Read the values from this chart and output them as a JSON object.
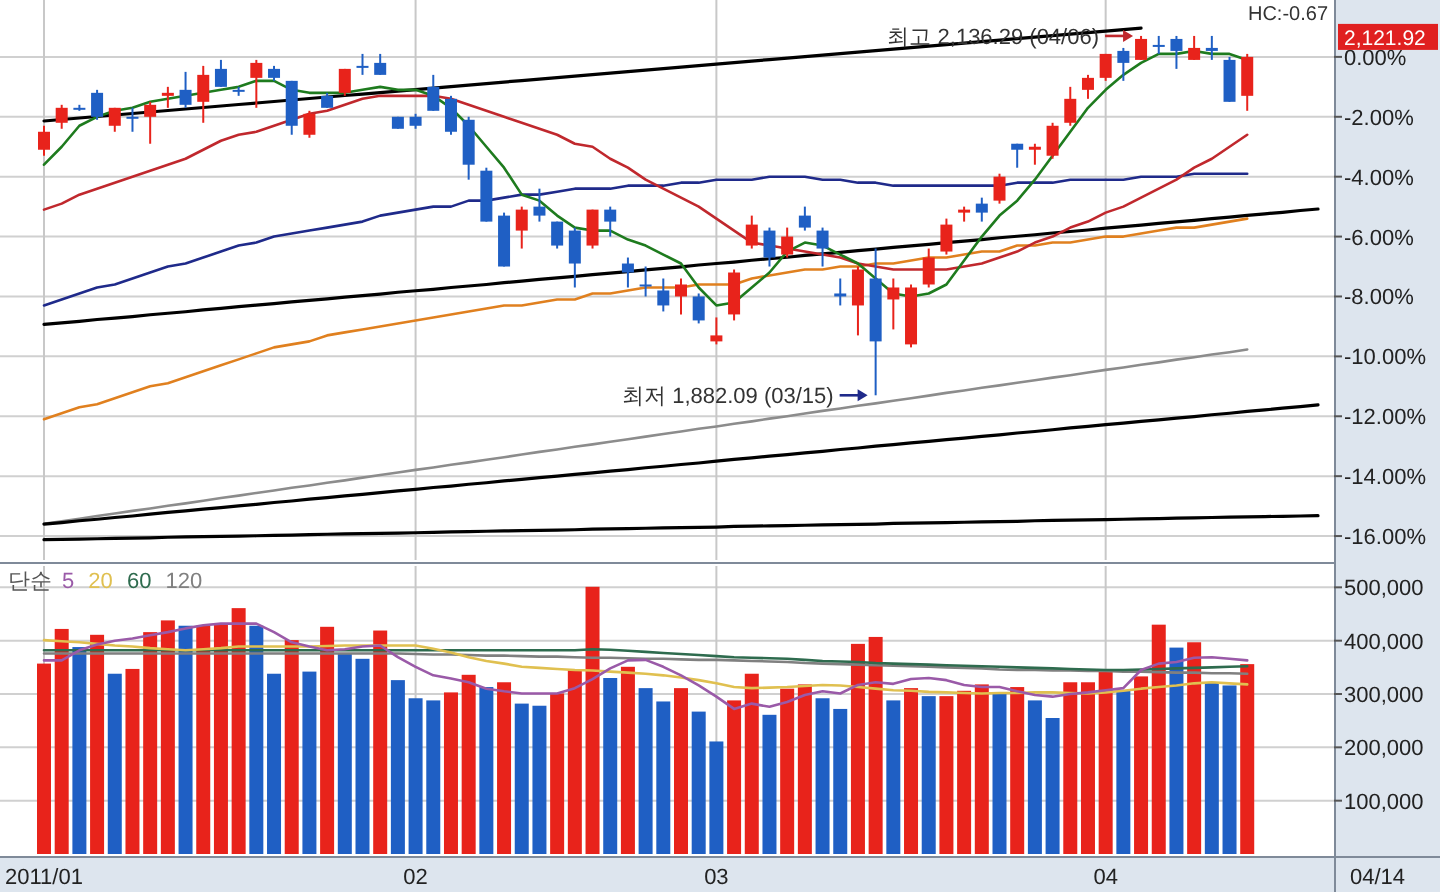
{
  "chart_data": [
    {
      "type": "candlestick",
      "categories": [
        "2011/01",
        null,
        null,
        null,
        null,
        null,
        null,
        null,
        null,
        null,
        null,
        null,
        null,
        null,
        null,
        null,
        null,
        null,
        null,
        null,
        null,
        "02",
        null,
        null,
        null,
        null,
        null,
        null,
        null,
        null,
        null,
        null,
        null,
        null,
        null,
        null,
        null,
        null,
        "03",
        null,
        null,
        null,
        null,
        null,
        null,
        null,
        null,
        null,
        null,
        null,
        null,
        null,
        null,
        null,
        null,
        null,
        null,
        null,
        null,
        null,
        "04",
        null,
        null,
        null,
        null,
        null,
        null,
        null,
        null,
        null,
        null,
        null,
        null
      ],
      "ohlc": [
        [
          -3.1,
          -2.3,
          -3.3,
          -2.5
        ],
        [
          -2.2,
          -1.6,
          -2.4,
          -1.7
        ],
        [
          -1.7,
          -1.6,
          -1.8,
          -1.7
        ],
        [
          -1.2,
          -1.1,
          -2.1,
          -2.0
        ],
        [
          -2.3,
          -1.7,
          -2.5,
          -1.7
        ],
        [
          -2.0,
          -1.7,
          -2.5,
          -2.0
        ],
        [
          -2.0,
          -1.5,
          -2.9,
          -1.6
        ],
        [
          -1.3,
          -1.0,
          -1.7,
          -1.2
        ],
        [
          -1.1,
          -0.5,
          -1.7,
          -1.6
        ],
        [
          -1.5,
          -0.3,
          -2.2,
          -0.6
        ],
        [
          -0.4,
          -0.1,
          -1.0,
          -1.0
        ],
        [
          -1.1,
          -1.0,
          -1.3,
          -1.1
        ],
        [
          -0.7,
          -0.1,
          -1.7,
          -0.2
        ],
        [
          -0.4,
          -0.3,
          -0.8,
          -0.7
        ],
        [
          -0.8,
          -0.8,
          -2.6,
          -2.3
        ],
        [
          -2.6,
          -1.8,
          -2.7,
          -1.9
        ],
        [
          -1.3,
          -1.2,
          -1.7,
          -1.7
        ],
        [
          -1.2,
          -0.4,
          -1.3,
          -0.4
        ],
        [
          -0.3,
          0.1,
          -0.6,
          -0.3
        ],
        [
          -0.2,
          0.1,
          -0.6,
          -0.6
        ],
        [
          -2.0,
          -2.0,
          -2.4,
          -2.4
        ],
        [
          -2.0,
          -1.9,
          -2.4,
          -2.3
        ],
        [
          -1.0,
          -0.6,
          -1.8,
          -1.8
        ],
        [
          -1.4,
          -1.3,
          -2.6,
          -2.5
        ],
        [
          -2.1,
          -2.0,
          -4.1,
          -3.6
        ],
        [
          -3.8,
          -3.7,
          -5.5,
          -5.5
        ],
        [
          -5.3,
          -5.2,
          -7.0,
          -7.0
        ],
        [
          -5.8,
          -5.0,
          -6.4,
          -5.1
        ],
        [
          -5.0,
          -4.4,
          -5.5,
          -5.3
        ],
        [
          -5.5,
          -5.5,
          -6.4,
          -6.3
        ],
        [
          -5.8,
          -5.7,
          -7.7,
          -6.9
        ],
        [
          -6.3,
          -5.1,
          -6.4,
          -5.1
        ],
        [
          -5.1,
          -5.0,
          -6.0,
          -5.5
        ],
        [
          -6.9,
          -6.7,
          -7.7,
          -7.2
        ],
        [
          -7.6,
          -7.0,
          -8.0,
          -7.6
        ],
        [
          -7.8,
          -7.4,
          -8.5,
          -8.3
        ],
        [
          -8.0,
          -7.4,
          -8.6,
          -7.6
        ],
        [
          -8.0,
          -7.9,
          -8.9,
          -8.8
        ],
        [
          -9.5,
          -8.7,
          -9.6,
          -9.3
        ],
        [
          -8.6,
          -7.1,
          -8.8,
          -7.2
        ],
        [
          -6.3,
          -5.3,
          -6.4,
          -5.6
        ],
        [
          -5.8,
          -5.7,
          -7.0,
          -6.7
        ],
        [
          -6.6,
          -5.7,
          -6.7,
          -6.0
        ],
        [
          -5.3,
          -5.0,
          -5.8,
          -5.7
        ],
        [
          -5.8,
          -5.7,
          -7.0,
          -6.4
        ],
        [
          -7.9,
          -7.4,
          -8.3,
          -8.0
        ],
        [
          -8.3,
          -7.0,
          -9.3,
          -7.1
        ],
        [
          -7.4,
          -6.4,
          -11.3,
          -9.5
        ],
        [
          -8.1,
          -7.4,
          -9.1,
          -7.7
        ],
        [
          -9.6,
          -7.6,
          -9.7,
          -7.7
        ],
        [
          -7.6,
          -6.4,
          -7.7,
          -6.7
        ],
        [
          -6.5,
          -5.4,
          -6.6,
          -5.6
        ],
        [
          -5.2,
          -5.0,
          -5.5,
          -5.1
        ],
        [
          -4.9,
          -4.7,
          -5.5,
          -5.2
        ],
        [
          -4.8,
          -3.9,
          -4.9,
          -4.0
        ],
        [
          -2.9,
          -2.9,
          -3.7,
          -3.1
        ],
        [
          -3.1,
          -2.9,
          -3.6,
          -3.0
        ],
        [
          -3.3,
          -2.2,
          -3.4,
          -2.3
        ],
        [
          -2.2,
          -1.0,
          -2.3,
          -1.4
        ],
        [
          -1.1,
          -0.6,
          -1.4,
          -0.7
        ],
        [
          -0.7,
          0.1,
          -0.8,
          0.1
        ],
        [
          0.2,
          0.3,
          -0.8,
          -0.2
        ],
        [
          -0.1,
          0.7,
          -0.1,
          0.6
        ],
        [
          0.4,
          0.7,
          0.1,
          0.4
        ],
        [
          0.6,
          0.7,
          -0.4,
          0.2
        ],
        [
          -0.1,
          0.7,
          -0.1,
          0.3
        ],
        [
          0.3,
          0.7,
          -0.1,
          0.2
        ],
        [
          -0.1,
          0.0,
          -1.5,
          -1.5
        ],
        [
          -1.3,
          0.1,
          -1.8,
          0.0
        ],
        null,
        null,
        null,
        null
      ],
      "colors": [
        "#e8231b",
        "#e8231b",
        "#1f5fc4",
        "#1f5fc4",
        "#e8231b",
        "#1f5fc4",
        "#e8231b",
        "#e8231b",
        "#1f5fc4",
        "#e8231b",
        "#1f5fc4",
        "#1f5fc4",
        "#e8231b",
        "#1f5fc4",
        "#1f5fc4",
        "#e8231b",
        "#1f5fc4",
        "#e8231b",
        "#1f5fc4",
        "#1f5fc4",
        "#1f5fc4",
        "#1f5fc4",
        "#1f5fc4",
        "#1f5fc4",
        "#1f5fc4",
        "#1f5fc4",
        "#1f5fc4",
        "#e8231b",
        "#1f5fc4",
        "#1f5fc4",
        "#1f5fc4",
        "#e8231b",
        "#1f5fc4",
        "#1f5fc4",
        "#1f5fc4",
        "#1f5fc4",
        "#e8231b",
        "#1f5fc4",
        "#e8231b",
        "#e8231b",
        "#e8231b",
        "#1f5fc4",
        "#e8231b",
        "#1f5fc4",
        "#1f5fc4",
        "#1f5fc4",
        "#e8231b",
        "#1f5fc4",
        "#e8231b",
        "#e8231b",
        "#e8231b",
        "#e8231b",
        "#e8231b",
        "#1f5fc4",
        "#e8231b",
        "#1f5fc4",
        "#e8231b",
        "#e8231b",
        "#e8231b",
        "#e8231b",
        "#e8231b",
        "#1f5fc4",
        "#e8231b",
        "#1f5fc4",
        "#1f5fc4",
        "#e8231b",
        "#1f5fc4",
        "#1f5fc4",
        "#e8231b",
        null,
        null,
        null,
        null
      ],
      "series": [
        {
          "type": "line",
          "color": "#000000",
          "values": [
            -2.14,
            -2.09,
            -2.04,
            -1.99,
            -1.94,
            -1.89,
            -1.84,
            -1.79,
            -1.74,
            -1.69,
            -1.64,
            -1.59,
            -1.54,
            -1.49,
            -1.44,
            -1.39,
            -1.34,
            -1.29,
            -1.24,
            -1.19,
            -1.14,
            -1.09,
            -1.04,
            -0.99,
            -0.94,
            -0.89,
            -0.84,
            -0.79,
            -0.74,
            -0.69,
            -0.64,
            -0.59,
            -0.54,
            -0.49,
            -0.44,
            -0.39,
            -0.34,
            -0.29,
            -0.24,
            -0.19,
            -0.14,
            -0.09,
            -0.04,
            0.01,
            0.06,
            0.11,
            0.16,
            0.21,
            0.26,
            0.31,
            0.36,
            0.41,
            0.46,
            0.51,
            0.56,
            0.61,
            0.66,
            0.71,
            0.76,
            0.81,
            0.86,
            0.91,
            0.96,
            null,
            null,
            null,
            null,
            null,
            null,
            null,
            null,
            null,
            null
          ]
        },
        {
          "type": "line",
          "color": "#000000",
          "values": [
            -8.93,
            -8.88,
            -8.83,
            -8.77,
            -8.72,
            -8.67,
            -8.61,
            -8.56,
            -8.51,
            -8.45,
            -8.4,
            -8.34,
            -8.29,
            -8.24,
            -8.18,
            -8.13,
            -8.08,
            -8.02,
            -7.97,
            -7.92,
            -7.86,
            -7.81,
            -7.76,
            -7.7,
            -7.65,
            -7.6,
            -7.54,
            -7.49,
            -7.43,
            -7.38,
            -7.33,
            -7.27,
            -7.22,
            -7.17,
            -7.11,
            -7.06,
            -7.01,
            -6.95,
            -6.9,
            -6.85,
            -6.79,
            -6.74,
            -6.69,
            -6.63,
            -6.58,
            -6.53,
            -6.47,
            -6.42,
            -6.36,
            -6.31,
            -6.26,
            -6.2,
            -6.15,
            -6.1,
            -6.04,
            -5.99,
            -5.94,
            -5.88,
            -5.83,
            -5.78,
            -5.72,
            -5.67,
            -5.62,
            -5.56,
            -5.51,
            -5.46,
            -5.4,
            -5.35,
            -5.29,
            -5.24,
            -5.19,
            -5.13,
            -5.08
          ]
        },
        {
          "type": "line",
          "color": "#8c8c8c",
          "values": [
            -15.59,
            -15.51,
            -15.42,
            -15.33,
            -15.25,
            -15.16,
            -15.08,
            -14.99,
            -14.91,
            -14.82,
            -14.73,
            -14.65,
            -14.56,
            -14.48,
            -14.39,
            -14.31,
            -14.22,
            -14.14,
            -14.05,
            -13.96,
            -13.88,
            -13.79,
            -13.71,
            -13.62,
            -13.54,
            -13.45,
            -13.37,
            -13.28,
            -13.19,
            -13.11,
            -13.02,
            -12.94,
            -12.85,
            -12.77,
            -12.68,
            -12.59,
            -12.51,
            -12.42,
            -12.34,
            -12.25,
            -12.17,
            -12.08,
            -12.0,
            -11.91,
            -11.82,
            -11.74,
            -11.65,
            -11.57,
            -11.48,
            -11.4,
            -11.31,
            -11.22,
            -11.14,
            -11.05,
            -10.97,
            -10.88,
            -10.8,
            -10.71,
            -10.63,
            -10.54,
            -10.45,
            -10.37,
            -10.28,
            -10.2,
            -10.11,
            -10.03,
            -9.94,
            -9.86,
            -9.77,
            null,
            null,
            null,
            null
          ]
        },
        {
          "type": "line",
          "color": "#000000",
          "values": [
            -15.6,
            -15.55,
            -15.49,
            -15.44,
            -15.38,
            -15.33,
            -15.27,
            -15.21,
            -15.16,
            -15.1,
            -15.05,
            -14.99,
            -14.94,
            -14.88,
            -14.83,
            -14.77,
            -14.72,
            -14.66,
            -14.61,
            -14.55,
            -14.49,
            -14.44,
            -14.38,
            -14.33,
            -14.27,
            -14.22,
            -14.16,
            -14.11,
            -14.05,
            -14.0,
            -13.94,
            -13.89,
            -13.83,
            -13.78,
            -13.72,
            -13.67,
            -13.61,
            -13.56,
            -13.5,
            -13.44,
            -13.39,
            -13.33,
            -13.28,
            -13.22,
            -13.17,
            -13.11,
            -13.06,
            -13.0,
            -12.95,
            -12.89,
            -12.84,
            -12.78,
            -12.73,
            -12.67,
            -12.62,
            -12.56,
            -12.51,
            -12.45,
            -12.39,
            -12.34,
            -12.28,
            -12.23,
            -12.17,
            -12.12,
            -12.06,
            -12.01,
            -11.95,
            -11.9,
            -11.84,
            -11.79,
            -11.73,
            -11.68,
            -11.62
          ]
        },
        {
          "type": "line",
          "color": "#000000",
          "values": [
            -16.12,
            -16.11,
            -16.1,
            -16.09,
            -16.08,
            -16.07,
            -16.06,
            -16.04,
            -16.03,
            -16.02,
            -16.01,
            -16.0,
            -15.99,
            -15.98,
            -15.97,
            -15.95,
            -15.94,
            -15.93,
            -15.92,
            -15.91,
            -15.9,
            -15.89,
            -15.88,
            -15.86,
            -15.85,
            -15.84,
            -15.83,
            -15.82,
            -15.81,
            -15.8,
            -15.79,
            -15.77,
            -15.76,
            -15.75,
            -15.74,
            -15.73,
            -15.72,
            -15.71,
            -15.7,
            -15.68,
            -15.67,
            -15.66,
            -15.65,
            -15.64,
            -15.63,
            -15.62,
            -15.61,
            -15.6,
            -15.58,
            -15.57,
            -15.56,
            -15.55,
            -15.54,
            -15.53,
            -15.52,
            -15.51,
            -15.49,
            -15.48,
            -15.47,
            -15.46,
            -15.45,
            -15.44,
            -15.43,
            -15.42,
            -15.4,
            -15.39,
            -15.38,
            -15.37,
            -15.36,
            -15.35,
            -15.34,
            -15.33,
            -15.32
          ]
        },
        {
          "type": "line",
          "color": "#e0801f",
          "values": [
            -12.1,
            -11.9,
            -11.7,
            -11.6,
            -11.4,
            -11.2,
            -11.0,
            -10.9,
            -10.7,
            -10.5,
            -10.3,
            -10.1,
            -9.9,
            -9.7,
            -9.6,
            -9.5,
            -9.3,
            -9.2,
            -9.1,
            -9.0,
            -8.9,
            -8.8,
            -8.7,
            -8.6,
            -8.5,
            -8.4,
            -8.3,
            -8.3,
            -8.2,
            -8.1,
            -8.1,
            -7.9,
            -7.9,
            -7.8,
            -7.7,
            -7.7,
            -7.7,
            -7.6,
            -7.6,
            -7.6,
            -7.4,
            -7.3,
            -7.2,
            -7.1,
            -7.1,
            -7.0,
            -7.0,
            -6.9,
            -6.9,
            -6.8,
            -6.7,
            -6.7,
            -6.6,
            -6.5,
            -6.5,
            -6.3,
            -6.3,
            -6.2,
            -6.2,
            -6.1,
            -6.0,
            -6.0,
            -5.9,
            -5.8,
            -5.7,
            -5.7,
            -5.6,
            -5.5,
            -5.4,
            null,
            null,
            null,
            null
          ]
        },
        {
          "type": "line",
          "color": "#1f2a8a",
          "values": [
            -8.3,
            -8.1,
            -7.9,
            -7.7,
            -7.6,
            -7.4,
            -7.2,
            -7.0,
            -6.9,
            -6.7,
            -6.5,
            -6.3,
            -6.2,
            -6.0,
            -5.9,
            -5.8,
            -5.7,
            -5.6,
            -5.5,
            -5.3,
            -5.2,
            -5.1,
            -5.0,
            -5.0,
            -4.8,
            -4.8,
            -4.7,
            -4.6,
            -4.6,
            -4.5,
            -4.4,
            -4.4,
            -4.4,
            -4.3,
            -4.3,
            -4.3,
            -4.2,
            -4.2,
            -4.1,
            -4.1,
            -4.1,
            -4.0,
            -4.0,
            -4.0,
            -4.1,
            -4.1,
            -4.2,
            -4.2,
            -4.3,
            -4.3,
            -4.3,
            -4.3,
            -4.3,
            -4.3,
            -4.3,
            -4.2,
            -4.2,
            -4.2,
            -4.1,
            -4.1,
            -4.1,
            -4.1,
            -4.0,
            -4.0,
            -4.0,
            -3.9,
            -3.9,
            -3.9,
            -3.9,
            null,
            null,
            null,
            null
          ]
        },
        {
          "type": "line",
          "color": "#c0282d",
          "values": [
            -5.1,
            -4.9,
            -4.6,
            -4.4,
            -4.2,
            -4.0,
            -3.8,
            -3.6,
            -3.4,
            -3.1,
            -2.8,
            -2.6,
            -2.5,
            -2.3,
            -2.1,
            -1.9,
            -1.8,
            -1.6,
            -1.4,
            -1.3,
            -1.3,
            -1.3,
            -1.3,
            -1.4,
            -1.6,
            -1.8,
            -2.0,
            -2.2,
            -2.4,
            -2.6,
            -2.9,
            -3.0,
            -3.4,
            -3.7,
            -4.1,
            -4.4,
            -4.7,
            -5.0,
            -5.4,
            -5.8,
            -6.2,
            -6.3,
            -6.4,
            -6.5,
            -6.6,
            -6.7,
            -6.9,
            -7.0,
            -7.1,
            -7.1,
            -7.1,
            -7.1,
            -7.0,
            -6.9,
            -6.7,
            -6.5,
            -6.2,
            -6.0,
            -5.7,
            -5.5,
            -5.2,
            -5.0,
            -4.7,
            -4.4,
            -4.1,
            -3.7,
            -3.4,
            -3.0,
            -2.6,
            null,
            null,
            null,
            null
          ]
        },
        {
          "type": "line",
          "color": "#1e7b1e",
          "values": [
            -3.6,
            -3.0,
            -2.3,
            -2.0,
            -1.8,
            -1.7,
            -1.5,
            -1.4,
            -1.3,
            -1.2,
            -1.1,
            -1.0,
            -0.8,
            -0.8,
            -1.1,
            -1.2,
            -1.2,
            -1.2,
            -1.1,
            -1.0,
            -1.1,
            -1.1,
            -1.3,
            -1.7,
            -2.3,
            -3.0,
            -3.7,
            -4.6,
            -4.8,
            -5.3,
            -5.7,
            -5.8,
            -5.8,
            -6.1,
            -6.3,
            -6.6,
            -6.9,
            -7.7,
            -8.3,
            -8.2,
            -7.7,
            -7.2,
            -6.5,
            -6.2,
            -6.3,
            -6.6,
            -6.9,
            -7.4,
            -7.9,
            -8.0,
            -7.9,
            -7.6,
            -6.8,
            -6.0,
            -5.3,
            -4.8,
            -4.1,
            -3.3,
            -2.5,
            -1.7,
            -1.1,
            -0.6,
            -0.2,
            0.1,
            0.1,
            0.2,
            0.1,
            0.1,
            -0.1,
            null,
            null,
            null,
            null
          ]
        }
      ],
      "ylim": [
        -16.8,
        1.9
      ],
      "yticks": [
        {
          "value": 0,
          "label": "0.00%"
        },
        {
          "value": -2,
          "label": "-2.00%"
        },
        {
          "value": -4,
          "label": "-4.00%"
        },
        {
          "value": -6,
          "label": "-6.00%"
        },
        {
          "value": -8,
          "label": "-8.00%"
        },
        {
          "value": -10,
          "label": "-10.00%"
        },
        {
          "value": -12,
          "label": "-12.00%"
        },
        {
          "value": -14,
          "label": "-14.00%"
        },
        {
          "value": -16,
          "label": "-16.00%"
        }
      ],
      "grid": true,
      "tick_labels": "y",
      "annotations": [
        "최고 2,136.29 (04/06)",
        "최저 1,882.09 (03/15)",
        "HC:-0.67",
        "2,121.92"
      ]
    },
    {
      "type": "bar",
      "categories": [
        "2011/01",
        null,
        null,
        null,
        null,
        null,
        null,
        null,
        null,
        null,
        null,
        null,
        null,
        null,
        null,
        null,
        null,
        null,
        null,
        null,
        null,
        "02",
        null,
        null,
        null,
        null,
        null,
        null,
        null,
        null,
        null,
        null,
        null,
        null,
        null,
        null,
        null,
        null,
        "03",
        null,
        null,
        null,
        null,
        null,
        null,
        null,
        null,
        null,
        null,
        null,
        null,
        null,
        null,
        null,
        null,
        null,
        null,
        null,
        null,
        null,
        "04",
        null,
        null,
        null,
        null,
        null,
        null,
        null,
        null,
        null,
        null,
        null,
        null
      ],
      "series": [
        {
          "type": "bar",
          "values": [
            357000,
            422000,
            388000,
            411000,
            338000,
            347000,
            416000,
            438000,
            428000,
            428000,
            431000,
            461000,
            428000,
            338000,
            401000,
            342000,
            426000,
            376000,
            366000,
            419000,
            326000,
            292000,
            288000,
            303000,
            336000,
            313000,
            322000,
            282000,
            278000,
            301000,
            345000,
            501000,
            330000,
            351000,
            311000,
            286000,
            311000,
            267000,
            211000,
            288000,
            338000,
            261000,
            310000,
            318000,
            292000,
            272000,
            394000,
            407000,
            288000,
            311000,
            296000,
            296000,
            306000,
            318000,
            301000,
            313000,
            288000,
            255000,
            322000,
            322000,
            342000,
            306000,
            333000,
            430000,
            387000,
            397000,
            322000,
            316000,
            356000,
            null,
            null,
            null,
            null
          ],
          "colors": [
            "#e8231b",
            "#e8231b",
            "#1f5fc4",
            "#e8231b",
            "#1f5fc4",
            "#e8231b",
            "#e8231b",
            "#e8231b",
            "#1f5fc4",
            "#e8231b",
            "#e8231b",
            "#e8231b",
            "#1f5fc4",
            "#1f5fc4",
            "#e8231b",
            "#1f5fc4",
            "#e8231b",
            "#1f5fc4",
            "#1f5fc4",
            "#e8231b",
            "#1f5fc4",
            "#1f5fc4",
            "#1f5fc4",
            "#e8231b",
            "#e8231b",
            "#1f5fc4",
            "#e8231b",
            "#1f5fc4",
            "#1f5fc4",
            "#e8231b",
            "#e8231b",
            "#e8231b",
            "#1f5fc4",
            "#e8231b",
            "#1f5fc4",
            "#1f5fc4",
            "#e8231b",
            "#1f5fc4",
            "#1f5fc4",
            "#e8231b",
            "#e8231b",
            "#1f5fc4",
            "#e8231b",
            "#e8231b",
            "#1f5fc4",
            "#1f5fc4",
            "#e8231b",
            "#e8231b",
            "#1f5fc4",
            "#e8231b",
            "#1f5fc4",
            "#e8231b",
            "#e8231b",
            "#e8231b",
            "#1f5fc4",
            "#e8231b",
            "#1f5fc4",
            "#1f5fc4",
            "#e8231b",
            "#e8231b",
            "#e8231b",
            "#1f5fc4",
            "#e8231b",
            "#e8231b",
            "#1f5fc4",
            "#e8231b",
            "#1f5fc4",
            "#1f5fc4",
            "#e8231b",
            null,
            null,
            null,
            null
          ]
        },
        {
          "type": "line",
          "name": "120",
          "color": "#808080",
          "values": [
            376000,
            376000,
            376000,
            376000,
            376000,
            376000,
            376000,
            376000,
            376000,
            376000,
            376000,
            376000,
            376000,
            376000,
            376000,
            376000,
            376000,
            376000,
            376000,
            376000,
            376000,
            375000,
            374000,
            374000,
            373000,
            372000,
            372000,
            371000,
            370000,
            370000,
            369000,
            368000,
            368000,
            367000,
            366000,
            366000,
            365000,
            364000,
            364000,
            363000,
            362000,
            361000,
            360000,
            358000,
            357000,
            356000,
            355000,
            354000,
            353000,
            352000,
            351000,
            350000,
            349000,
            348000,
            346000,
            345000,
            345000,
            344000,
            344000,
            343000,
            343000,
            342000,
            342000,
            341000,
            340000,
            340000,
            339000,
            339000,
            338000,
            null,
            null,
            null,
            null
          ]
        },
        {
          "type": "line",
          "name": "60",
          "color": "#2e6b4e",
          "values": [
            382000,
            382000,
            382000,
            382000,
            382000,
            382000,
            382000,
            382000,
            382000,
            382000,
            382000,
            382000,
            382000,
            382000,
            382000,
            382000,
            382000,
            382000,
            382000,
            382000,
            382000,
            382000,
            382000,
            382000,
            382000,
            382000,
            382000,
            382000,
            382000,
            382000,
            382000,
            384000,
            383000,
            381000,
            379000,
            377000,
            375000,
            373000,
            371000,
            369000,
            368000,
            367000,
            366000,
            364000,
            362000,
            361000,
            360000,
            358000,
            357000,
            356000,
            355000,
            354000,
            353000,
            352000,
            351000,
            350000,
            349000,
            348000,
            347000,
            346000,
            345000,
            345000,
            346000,
            347000,
            348000,
            349000,
            350000,
            351000,
            352000,
            null,
            null,
            null,
            null
          ]
        },
        {
          "type": "line",
          "name": "20",
          "color": "#e0c050",
          "values": [
            401000,
            399000,
            397000,
            394000,
            391000,
            389000,
            386000,
            384000,
            382000,
            384000,
            386000,
            389000,
            389000,
            389000,
            389000,
            389000,
            390000,
            391000,
            391000,
            391000,
            391000,
            391000,
            385000,
            378000,
            369000,
            362000,
            357000,
            351000,
            349000,
            347000,
            345000,
            344000,
            342000,
            340000,
            338000,
            335000,
            331000,
            326000,
            320000,
            313000,
            311000,
            312000,
            313000,
            315000,
            317000,
            316000,
            313000,
            310000,
            307000,
            306000,
            304000,
            303000,
            302000,
            301000,
            302000,
            302000,
            303000,
            303000,
            302000,
            301000,
            303000,
            306000,
            310000,
            313000,
            316000,
            320000,
            322000,
            320000,
            318000,
            null,
            null,
            null,
            null
          ]
        },
        {
          "type": "line",
          "name": "5",
          "color": "#9a5aa8",
          "values": [
            363000,
            363000,
            382000,
            393000,
            400000,
            404000,
            410000,
            416000,
            423000,
            429000,
            432000,
            432000,
            432000,
            416000,
            397000,
            389000,
            382000,
            384000,
            389000,
            391000,
            369000,
            351000,
            335000,
            329000,
            322000,
            310000,
            305000,
            301000,
            301000,
            301000,
            311000,
            328000,
            348000,
            363000,
            364000,
            351000,
            335000,
            316000,
            295000,
            272000,
            282000,
            276000,
            285000,
            298000,
            305000,
            301000,
            317000,
            322000,
            319000,
            328000,
            330000,
            326000,
            317000,
            313000,
            313000,
            305000,
            298000,
            295000,
            300000,
            303000,
            307000,
            311000,
            345000,
            357000,
            360000,
            368000,
            369000,
            366000,
            363000,
            null,
            null,
            null,
            null
          ]
        }
      ],
      "ylim": [
        0,
        540000
      ],
      "yticks": [
        {
          "value": 100000,
          "label": "100,000"
        },
        {
          "value": 200000,
          "label": "200,000"
        },
        {
          "value": 300000,
          "label": "300,000"
        },
        {
          "value": 400000,
          "label": "400,000"
        },
        {
          "value": 500000,
          "label": "500,000"
        }
      ],
      "grid": true,
      "legend": "top left",
      "legend_title": "단순",
      "annotations": [
        "04/14"
      ]
    }
  ]
}
